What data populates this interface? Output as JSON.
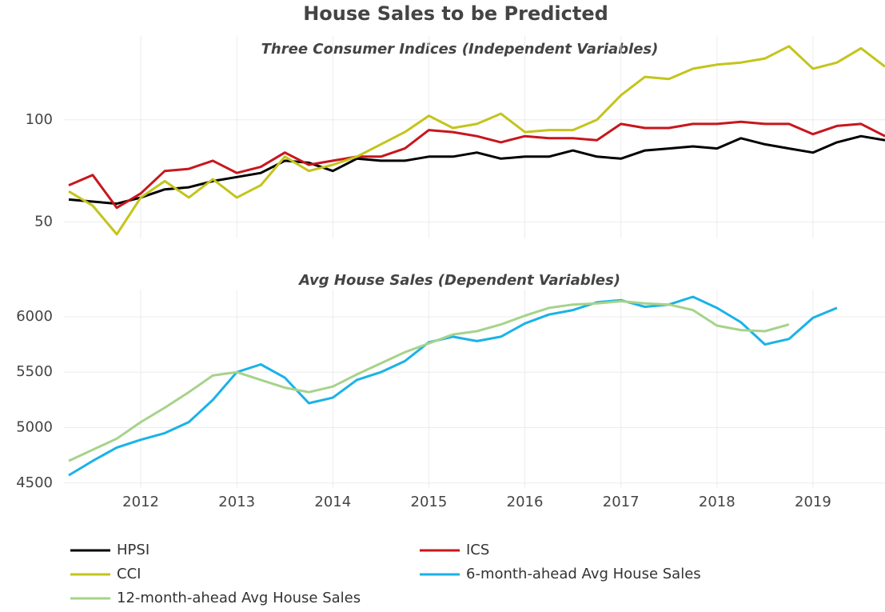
{
  "title": "House Sales to be Predicted",
  "chart_data": [
    {
      "type": "line",
      "title": "Three Consumer Indices (Independent Variables)",
      "x": [
        2011.25,
        2011.5,
        2011.75,
        2012,
        2012.25,
        2012.5,
        2012.75,
        2013,
        2013.25,
        2013.5,
        2013.75,
        2014,
        2014.25,
        2014.5,
        2014.75,
        2015,
        2015.25,
        2015.5,
        2015.75,
        2016,
        2016.25,
        2016.5,
        2016.75,
        2017,
        2017.25,
        2017.5,
        2017.75,
        2018,
        2018.25,
        2018.5,
        2018.75,
        2019,
        2019.25,
        2019.5,
        2019.75
      ],
      "xlim": [
        2011.2,
        2019.75
      ],
      "ylim": [
        42,
        141
      ],
      "yticks": [
        50,
        100
      ],
      "grid": true,
      "series": [
        {
          "name": "HPSI",
          "color": "#000000",
          "values": [
            61,
            60,
            59,
            62,
            66,
            67,
            70,
            72,
            74,
            80,
            79,
            75,
            81,
            80,
            80,
            82,
            82,
            84,
            81,
            82,
            82,
            85,
            82,
            81,
            85,
            86,
            87,
            86,
            91,
            88,
            86,
            84,
            89,
            92,
            90
          ]
        },
        {
          "name": "ICS",
          "color": "#c8161d",
          "values": [
            68,
            73,
            57,
            64,
            75,
            76,
            80,
            74,
            77,
            84,
            78,
            80,
            82,
            82,
            86,
            95,
            94,
            92,
            89,
            92,
            91,
            91,
            90,
            98,
            96,
            96,
            98,
            98,
            99,
            98,
            98,
            93,
            97,
            98,
            92
          ]
        },
        {
          "name": "CCI",
          "color": "#c4c41c",
          "values": [
            65,
            58,
            44,
            62,
            70,
            62,
            71,
            62,
            68,
            82,
            75,
            78,
            82,
            88,
            94,
            102,
            96,
            98,
            103,
            94,
            95,
            95,
            100,
            112,
            121,
            120,
            125,
            127,
            128,
            130,
            136,
            125,
            128,
            135,
            126
          ]
        }
      ]
    },
    {
      "type": "line",
      "title": "Avg House Sales (Dependent Variables)",
      "x": [
        2011.25,
        2011.5,
        2011.75,
        2012,
        2012.25,
        2012.5,
        2012.75,
        2013,
        2013.25,
        2013.5,
        2013.75,
        2014,
        2014.25,
        2014.5,
        2014.75,
        2015,
        2015.25,
        2015.5,
        2015.75,
        2016,
        2016.25,
        2016.5,
        2016.75,
        2017,
        2017.25,
        2017.5,
        2017.75,
        2018,
        2018.25,
        2018.5,
        2018.75,
        2019,
        2019.25,
        2019.5,
        2019.75
      ],
      "xlim": [
        2011.2,
        2019.75
      ],
      "xticks": [
        2012,
        2013,
        2014,
        2015,
        2016,
        2017,
        2018,
        2019
      ],
      "ylim": [
        4455,
        6245
      ],
      "yticks": [
        4500,
        5000,
        5500,
        6000
      ],
      "grid": true,
      "series": [
        {
          "name": "6-month-ahead Avg House Sales",
          "color": "#1ab2e8",
          "values": [
            4570,
            4700,
            4820,
            4890,
            4950,
            5050,
            5250,
            5500,
            5570,
            5450,
            5220,
            5270,
            5430,
            5500,
            5600,
            5770,
            5820,
            5780,
            5820,
            5940,
            6020,
            6060,
            6130,
            6150,
            6090,
            6110,
            6180,
            6080,
            5950,
            5750,
            5800,
            5990,
            6080,
            null,
            null
          ]
        },
        {
          "name": "12-month-ahead Avg House Sales",
          "color": "#a6d38a",
          "values": [
            4700,
            4800,
            4900,
            5050,
            5180,
            5320,
            5470,
            5500,
            5430,
            5360,
            5320,
            5370,
            5480,
            5580,
            5680,
            5760,
            5840,
            5870,
            5930,
            6010,
            6080,
            6110,
            6120,
            6140,
            6120,
            6110,
            6060,
            5920,
            5880,
            5870,
            5930,
            null,
            null,
            null,
            null
          ]
        }
      ]
    }
  ]
}
